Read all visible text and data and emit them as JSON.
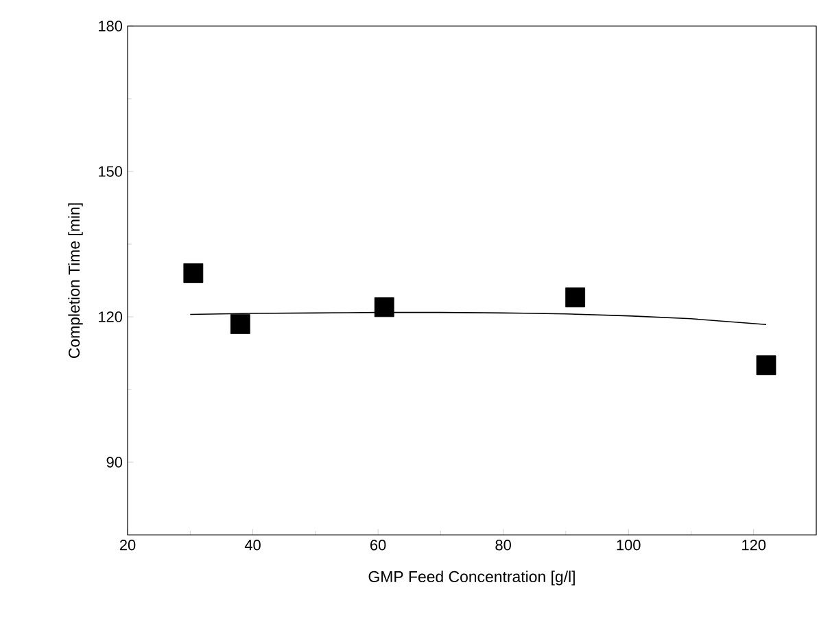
{
  "chart_data": {
    "type": "scatter",
    "xlabel": "GMP Feed Concentration [g/l]",
    "ylabel": "Completion Time [min]",
    "xlim": [
      20,
      130
    ],
    "ylim": [
      75,
      180
    ],
    "xticks": [
      20,
      40,
      60,
      80,
      100,
      120
    ],
    "yticks": [
      90,
      120,
      150,
      180
    ],
    "grid": false,
    "marker": "square",
    "series": [
      {
        "color": "#000000",
        "x": [
          30.5,
          38,
          61,
          91.5,
          122
        ],
        "values": [
          129,
          118.5,
          122,
          124,
          110
        ]
      },
      {
        "type": "line",
        "color": "#000000",
        "marker": "none",
        "line_style": "solid",
        "x": [
          30,
          40,
          50,
          60,
          70,
          80,
          90,
          100,
          110,
          122
        ],
        "values": [
          120.5,
          120.7,
          120.8,
          120.9,
          120.9,
          120.8,
          120.6,
          120.2,
          119.6,
          118.4
        ]
      }
    ]
  }
}
